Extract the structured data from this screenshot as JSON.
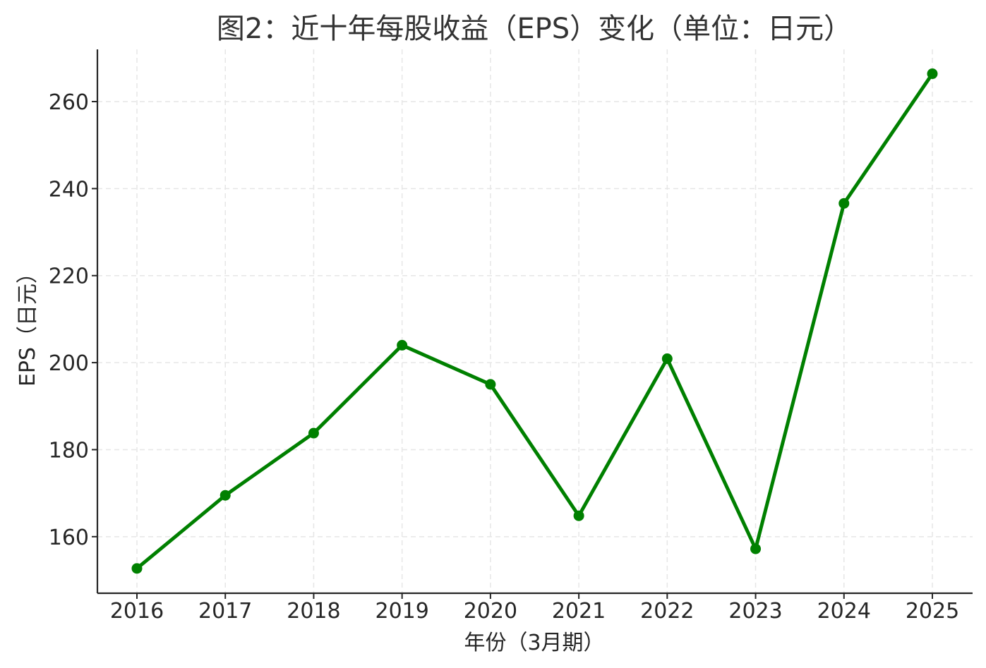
{
  "chart_data": {
    "type": "line",
    "title": "图2：近十年每股收益（EPS）变化（单位：日元）",
    "xlabel": "年份（3月期）",
    "ylabel": "EPS（日元）",
    "categories": [
      "2016",
      "2017",
      "2018",
      "2019",
      "2020",
      "2021",
      "2022",
      "2023",
      "2024",
      "2025"
    ],
    "series": [
      {
        "values": [
          152.7,
          169.5,
          183.8,
          204.0,
          195.0,
          164.8,
          200.9,
          157.2,
          236.6,
          266.4
        ],
        "color": "#008000",
        "marker": "circle"
      }
    ],
    "yticks": [
      160,
      180,
      200,
      220,
      240,
      260
    ],
    "ylim": [
      147,
      272
    ],
    "grid": true,
    "legend": "none"
  }
}
